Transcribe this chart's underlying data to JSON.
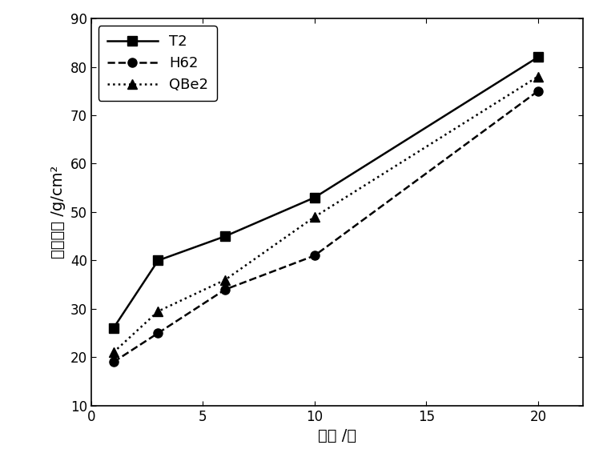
{
  "series": [
    {
      "label": "T2",
      "x": [
        1,
        3,
        6,
        10,
        20
      ],
      "y": [
        26,
        40,
        45,
        53,
        82
      ],
      "linestyle": "-",
      "marker": "s",
      "color": "#000000"
    },
    {
      "label": "H62",
      "x": [
        1,
        3,
        6,
        10,
        20
      ],
      "y": [
        19,
        25,
        34,
        41,
        75
      ],
      "linestyle": "--",
      "marker": "o",
      "color": "#000000"
    },
    {
      "label": "QBe2",
      "x": [
        1,
        3,
        6,
        10,
        20
      ],
      "y": [
        21,
        29.5,
        36,
        49,
        78
      ],
      "linestyle": ":",
      "marker": "^",
      "color": "#000000"
    }
  ],
  "xlabel": "时间 /年",
  "ylabel": "腔㓀失重 /g/cm²",
  "xlim": [
    0,
    22
  ],
  "ylim": [
    10,
    90
  ],
  "xticks": [
    0,
    5,
    10,
    15,
    20
  ],
  "yticks": [
    10,
    20,
    30,
    40,
    50,
    60,
    70,
    80,
    90
  ],
  "axis_fontsize": 14,
  "tick_fontsize": 12,
  "legend_fontsize": 13,
  "linewidth": 1.8,
  "markersize": 8,
  "figure_facecolor": "#ffffff",
  "axes_facecolor": "#ffffff"
}
